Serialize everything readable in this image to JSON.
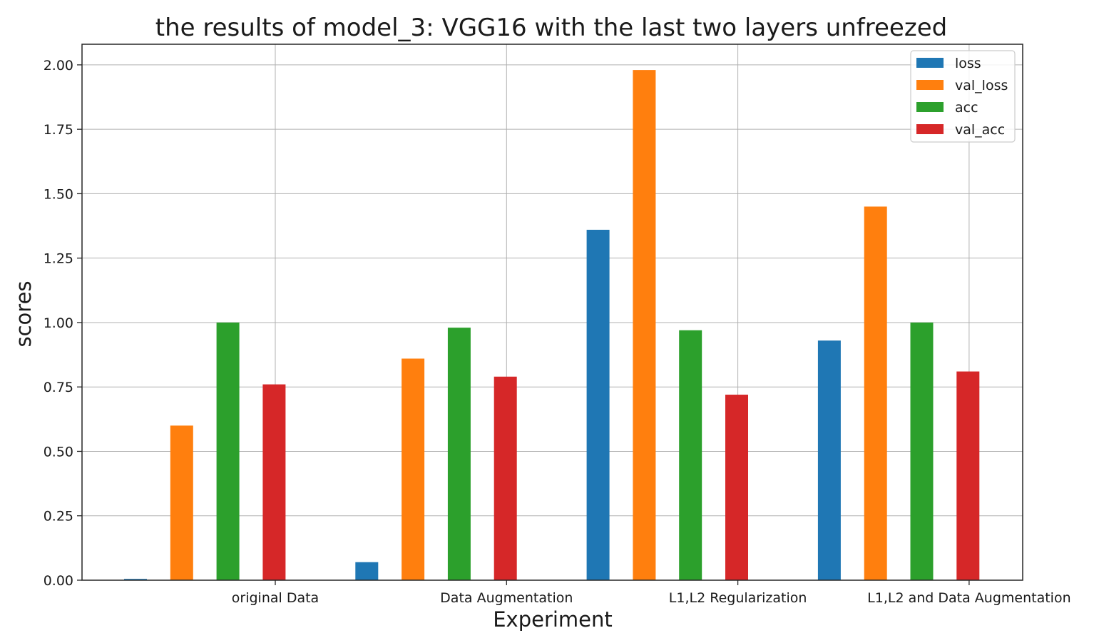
{
  "chart_data": {
    "type": "bar",
    "title": "the results of model_3: VGG16 with the last two layers unfreezed",
    "xlabel": "Experiment",
    "ylabel": "scores",
    "categories": [
      "original Data",
      "Data Augmentation",
      "L1,L2 Regularization",
      "L1,L2 and Data Augmentation"
    ],
    "series": [
      {
        "name": "loss",
        "color": "#1f77b4",
        "values": [
          0.005,
          0.07,
          1.36,
          0.93
        ]
      },
      {
        "name": "val_loss",
        "color": "#ff7f0e",
        "values": [
          0.6,
          0.86,
          1.98,
          1.45
        ]
      },
      {
        "name": "acc",
        "color": "#2ca02c",
        "values": [
          1.0,
          0.98,
          0.97,
          1.0
        ]
      },
      {
        "name": "val_acc",
        "color": "#d62728",
        "values": [
          0.76,
          0.79,
          0.72,
          0.81
        ]
      }
    ],
    "ylim": [
      0,
      2.08
    ],
    "yticks": [
      "0.00",
      "0.25",
      "0.50",
      "0.75",
      "1.00",
      "1.25",
      "1.50",
      "1.75",
      "2.00"
    ],
    "grid": true,
    "legend_position": "top-right"
  }
}
